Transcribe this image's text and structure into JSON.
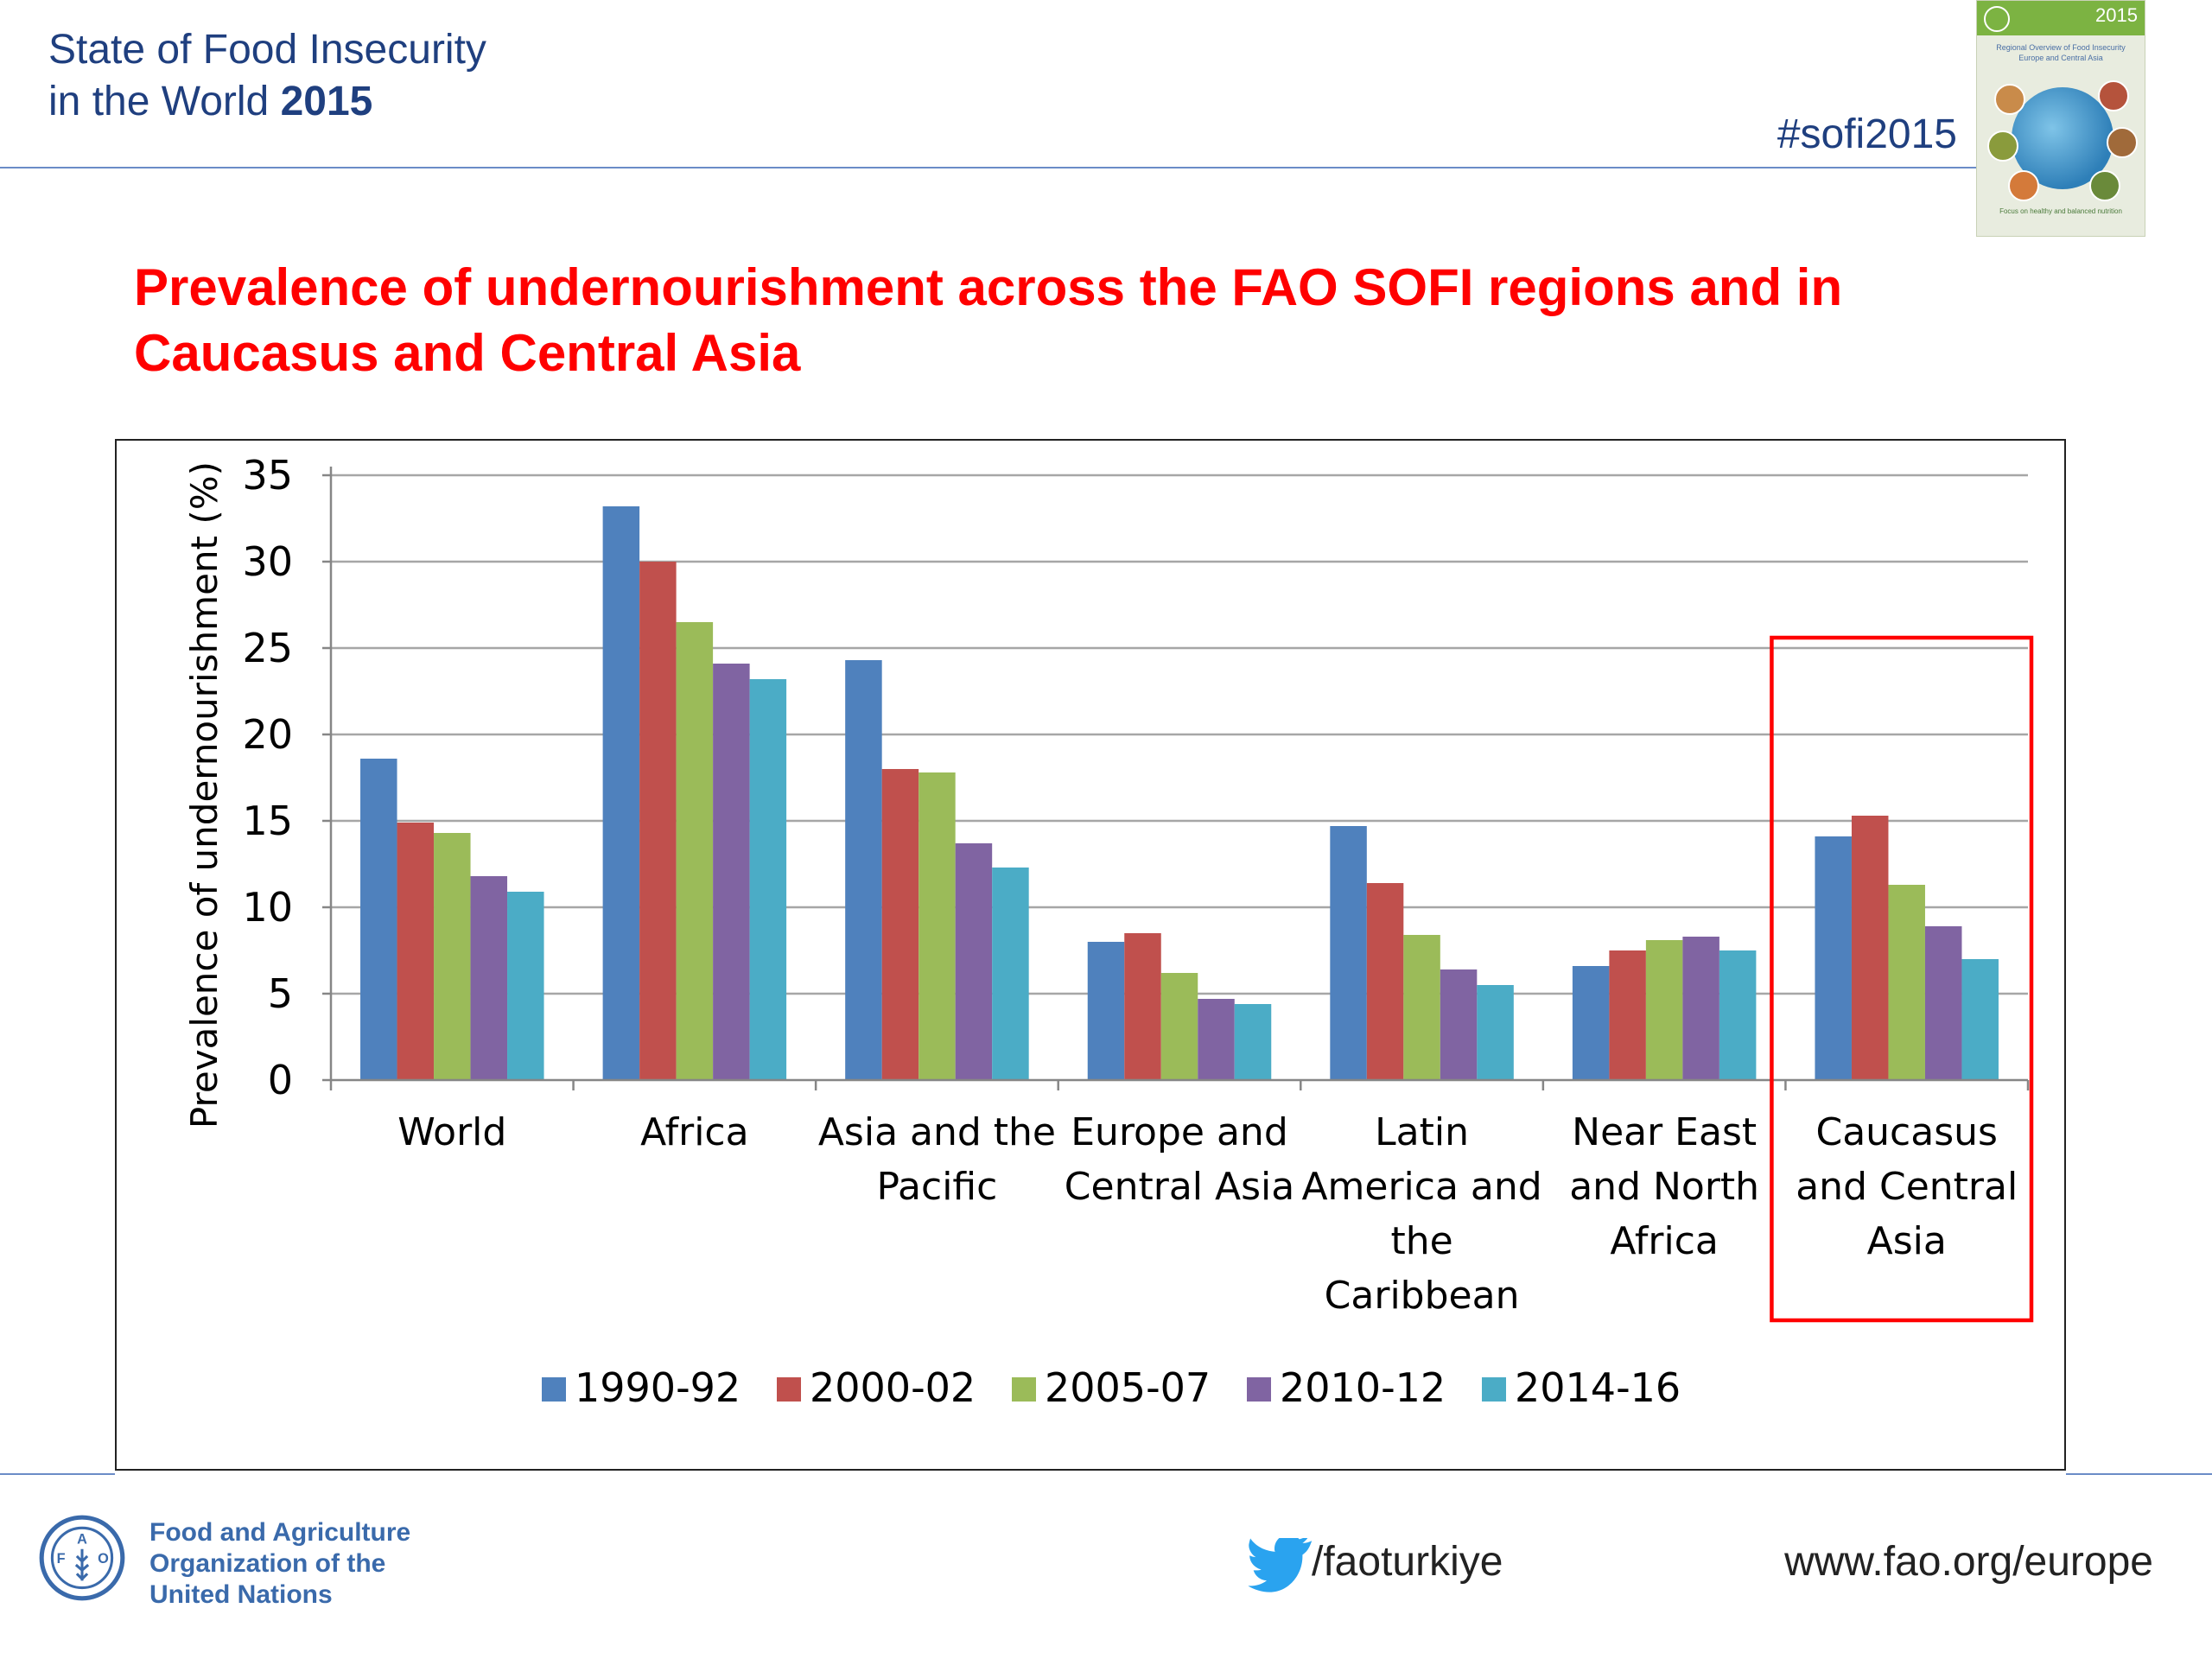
{
  "header": {
    "title_line1": "State of Food Insecurity",
    "title_line2_prefix": "in the World ",
    "title_line2_year": "2015",
    "hashtag": "#sofi2015"
  },
  "cover": {
    "year": "2015",
    "subtitle": "Regional Overview of Food Insecurity Europe and Central Asia",
    "footer": "Focus on healthy and balanced nutrition"
  },
  "slide_title": "Prevalence of undernourishment across the FAO SOFI regions and in Caucasus and Central Asia",
  "chart_data": {
    "type": "bar",
    "ylabel": "Prevalence of undernourishment (%)",
    "ylim": [
      0,
      35
    ],
    "yticks": [
      0,
      5,
      10,
      15,
      20,
      25,
      30,
      35
    ],
    "grid": true,
    "legend_position": "bottom",
    "categories": [
      [
        "World"
      ],
      [
        "Africa"
      ],
      [
        "Asia and the",
        "Pacific"
      ],
      [
        "Europe and",
        "Central Asia"
      ],
      [
        "Latin",
        "America and",
        "the",
        "Caribbean"
      ],
      [
        "Near East",
        "and North",
        "Africa"
      ],
      [
        "Caucasus",
        "and Central",
        "Asia"
      ]
    ],
    "highlighted_category_index": 6,
    "highlight_color": "#ff0000",
    "series": [
      {
        "name": "1990-92",
        "color": "#4f81bd",
        "values": [
          18.6,
          33.2,
          24.3,
          8.0,
          14.7,
          6.6,
          14.1
        ]
      },
      {
        "name": "2000-02",
        "color": "#c0504d",
        "values": [
          14.9,
          30.0,
          18.0,
          8.5,
          11.4,
          7.5,
          15.3
        ]
      },
      {
        "name": "2005-07",
        "color": "#9bbb59",
        "values": [
          14.3,
          26.5,
          17.8,
          6.2,
          8.4,
          8.1,
          11.3
        ]
      },
      {
        "name": "2010-12",
        "color": "#8064a2",
        "values": [
          11.8,
          24.1,
          13.7,
          4.7,
          6.4,
          8.3,
          8.9
        ]
      },
      {
        "name": "2014-16",
        "color": "#4bacc6",
        "values": [
          10.9,
          23.2,
          12.3,
          4.4,
          5.5,
          7.5,
          7.0
        ]
      }
    ]
  },
  "footer": {
    "org_line1": "Food and Agriculture",
    "org_line2": "Organization of the",
    "org_line3": "United Nations",
    "twitter_handle": "/faoturkiye",
    "website": "www.fao.org/europe"
  }
}
